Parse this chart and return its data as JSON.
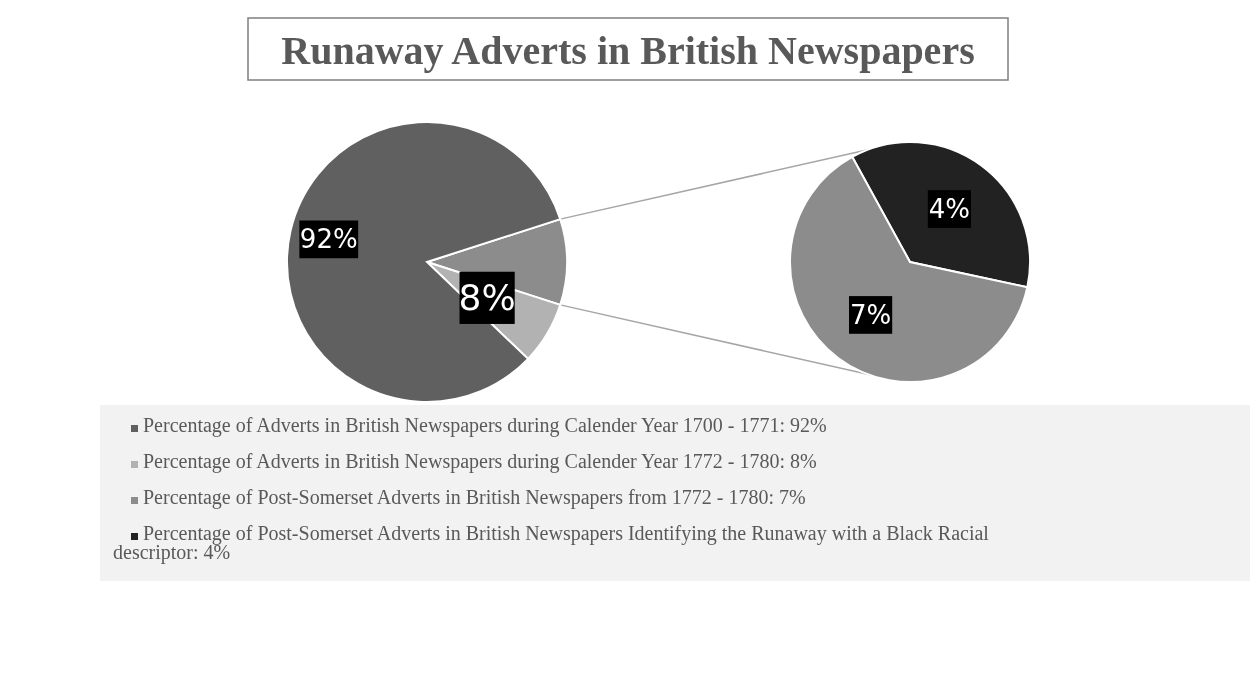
{
  "chart_data": [
    {
      "type": "pie",
      "title": "Runaway Adverts in British Newspapers",
      "categories": [
        "Percentage of Adverts in British Newspapers during Calender Year 1700 - 1771: 92%",
        "Percentage of Adverts in British Newspapers during Calender Year 1772 - 1780: 8%",
        null
      ],
      "values": [
        92,
        8,
        11
      ],
      "value_labels": [
        "92%",
        "8%",
        null
      ],
      "colors": [
        "#606060",
        "#b2b2b2",
        "#8c8c8c"
      ],
      "legend": "bottom"
    },
    {
      "type": "pie",
      "categories": [
        "Percentage of Post-Somerset Adverts in British Newspapers  from 1772 - 1780: 7%",
        "Percentage of Post-Somerset Adverts in British Newspapers Identifying the Runaway with a Black Racial descriptor: 4%"
      ],
      "values": [
        7,
        4
      ],
      "value_labels": [
        "7%",
        "4%"
      ],
      "colors": [
        "#8c8c8c",
        "#222222"
      ],
      "legend": "bottom"
    }
  ]
}
